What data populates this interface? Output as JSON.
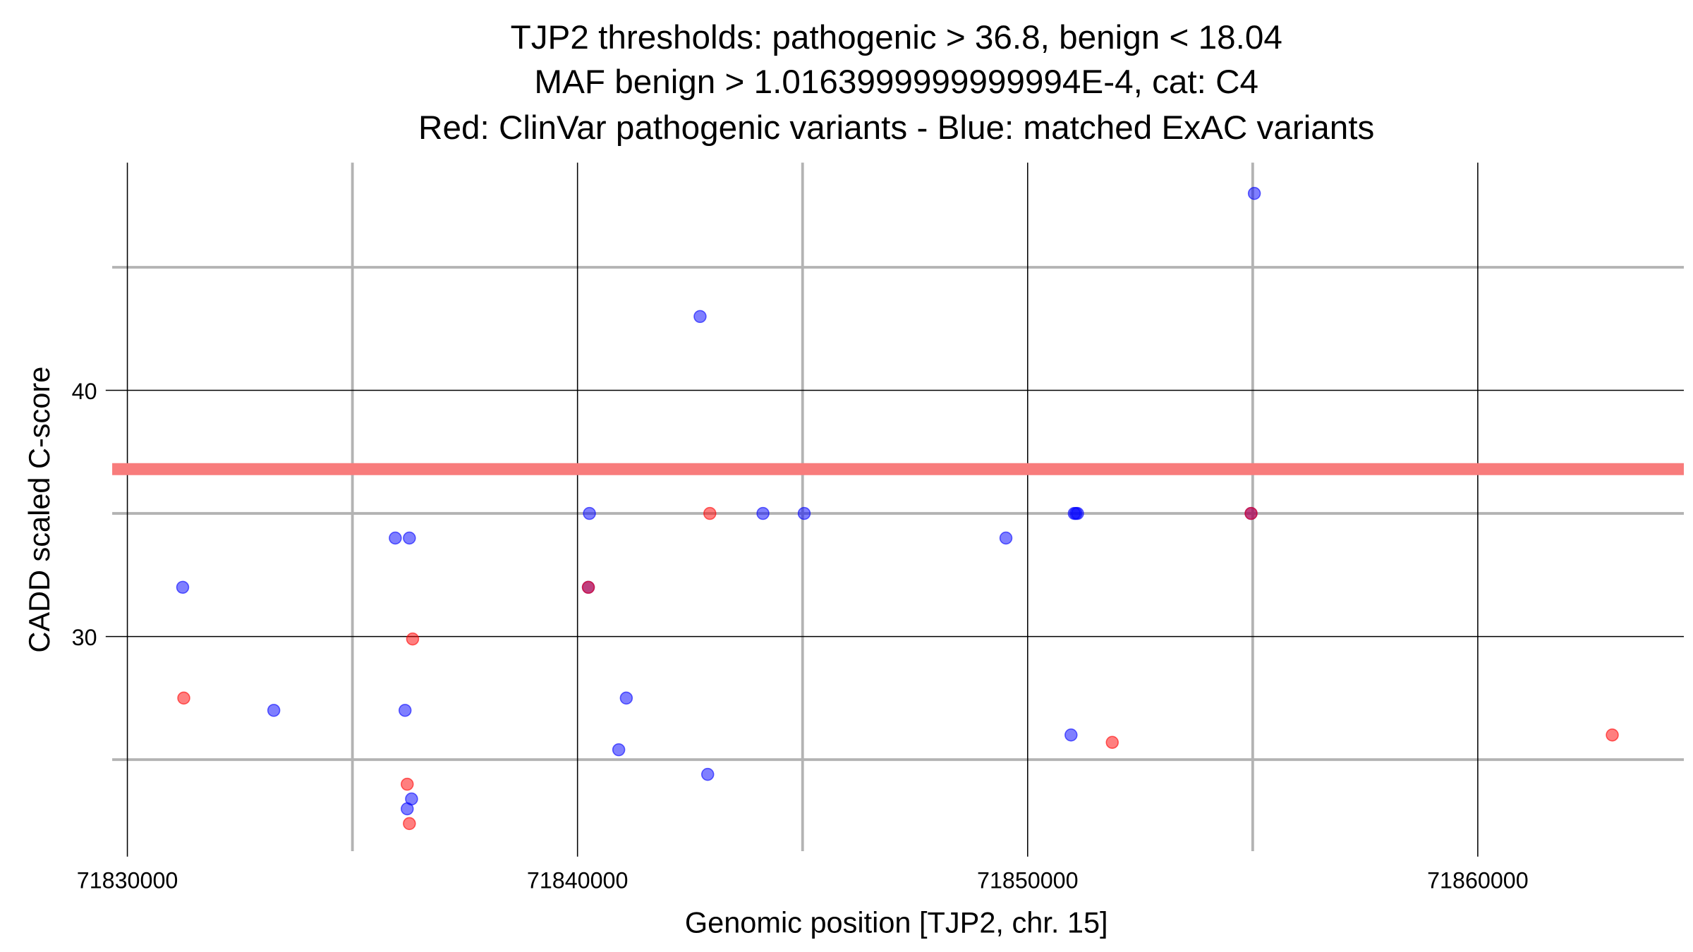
{
  "chart_data": {
    "type": "scatter",
    "title": [
      "TJP2 thresholds: pathogenic > 36.8, benign < 18.04",
      "MAF benign > 1.0163999999999994E-4, cat: C4",
      "Red: ClinVar pathogenic variants - Blue: matched ExAC variants"
    ],
    "xlabel": "Genomic position [TJP2, chr. 15]",
    "ylabel": "CADD scaled C-score",
    "xlim": [
      71829663,
      71864578
    ],
    "ylim": [
      21.28,
      49.25
    ],
    "x_ticks": [
      71830000,
      71840000,
      71850000,
      71860000
    ],
    "x_tick_labels": [
      "71830000",
      "71840000",
      "71850000",
      "71860000"
    ],
    "x_minor": [
      71835000,
      71845000,
      71855000
    ],
    "y_ticks": [
      30,
      40
    ],
    "y_tick_labels": [
      "30",
      "40"
    ],
    "y_minor": [
      25,
      35,
      45
    ],
    "grid": true,
    "threshold_line": {
      "y": 36.8,
      "color": "#f87c7c"
    },
    "series": [
      {
        "name": "matched ExAC variants",
        "color": "#0000ff",
        "points": [
          [
            71855036,
            48
          ],
          [
            71842723,
            43
          ],
          [
            71840265,
            35
          ],
          [
            71844120,
            35
          ],
          [
            71845036,
            35
          ],
          [
            71851036,
            35
          ],
          [
            71851072,
            35
          ],
          [
            71851108,
            35
          ],
          [
            71849518,
            34
          ],
          [
            71835952,
            34
          ],
          [
            71836265,
            34
          ],
          [
            71831229,
            32
          ],
          [
            71840241,
            32
          ],
          [
            71833253,
            27
          ],
          [
            71836169,
            27
          ],
          [
            71841084,
            27.5
          ],
          [
            71840916,
            25.4
          ],
          [
            71850964,
            26
          ],
          [
            71842892,
            24.4
          ],
          [
            71836313,
            23.4
          ],
          [
            71836217,
            23
          ],
          [
            71854964,
            35
          ]
        ]
      },
      {
        "name": "ClinVar pathogenic variants",
        "color": "#ff0000",
        "points": [
          [
            71842940,
            35
          ],
          [
            71836337,
            29.9
          ],
          [
            71831253,
            27.5
          ],
          [
            71836217,
            24
          ],
          [
            71836265,
            22.4
          ],
          [
            71851880,
            25.7
          ],
          [
            71862988,
            26
          ],
          [
            71840241,
            32
          ],
          [
            71854964,
            35
          ]
        ]
      }
    ]
  }
}
